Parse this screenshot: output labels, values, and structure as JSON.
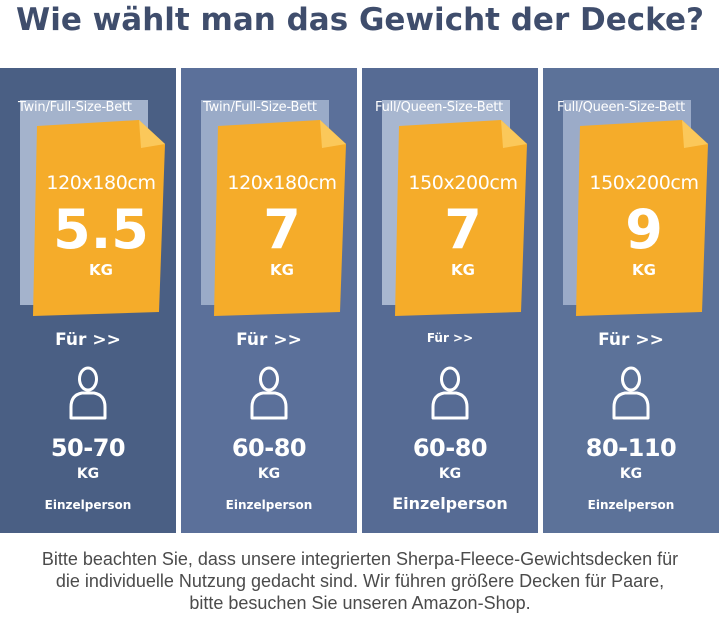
{
  "title": "Wie wählt man das Gewicht der Decke?",
  "colors": {
    "tag": "#f5ac2a",
    "tag_fold": "#fbc85a",
    "card": "#4f6488",
    "title": "#3f4d6c"
  },
  "cards": [
    {
      "bed": "Twin/Full-Size-Bett",
      "size": "120x180cm",
      "weight": "5.5",
      "weight_unit": "KG",
      "for_label": "Für >>",
      "person_icon": "person-icon",
      "range": "50-70",
      "range_unit": "KG",
      "type": "Einzelperson"
    },
    {
      "bed": "Twin/Full-Size-Bett",
      "size": "120x180cm",
      "weight": "7",
      "weight_unit": "KG",
      "for_label": "Für >>",
      "person_icon": "person-icon",
      "range": "60-80",
      "range_unit": "KG",
      "type": "Einzelperson"
    },
    {
      "bed": "Full/Queen-Size-Bett",
      "size": "150x200cm",
      "weight": "7",
      "weight_unit": "KG",
      "for_label": "Für >>",
      "person_icon": "person-icon",
      "range": "60-80",
      "range_unit": "KG",
      "type": "Einzelperson"
    },
    {
      "bed": "Full/Queen-Size-Bett",
      "size": "150x200cm",
      "weight": "9",
      "weight_unit": "KG",
      "for_label": "Für >>",
      "person_icon": "person-icon",
      "range": "80-110",
      "range_unit": "KG",
      "type": "Einzelperson"
    }
  ],
  "note": {
    "line1": "Bitte beachten Sie, dass unsere integrierten Sherpa-Fleece-Gewichtsdecken für",
    "line2": "die individuelle Nutzung gedacht sind. Wir führen größere Decken für Paare,",
    "line3": "bitte besuchen Sie unseren Amazon-Shop."
  }
}
